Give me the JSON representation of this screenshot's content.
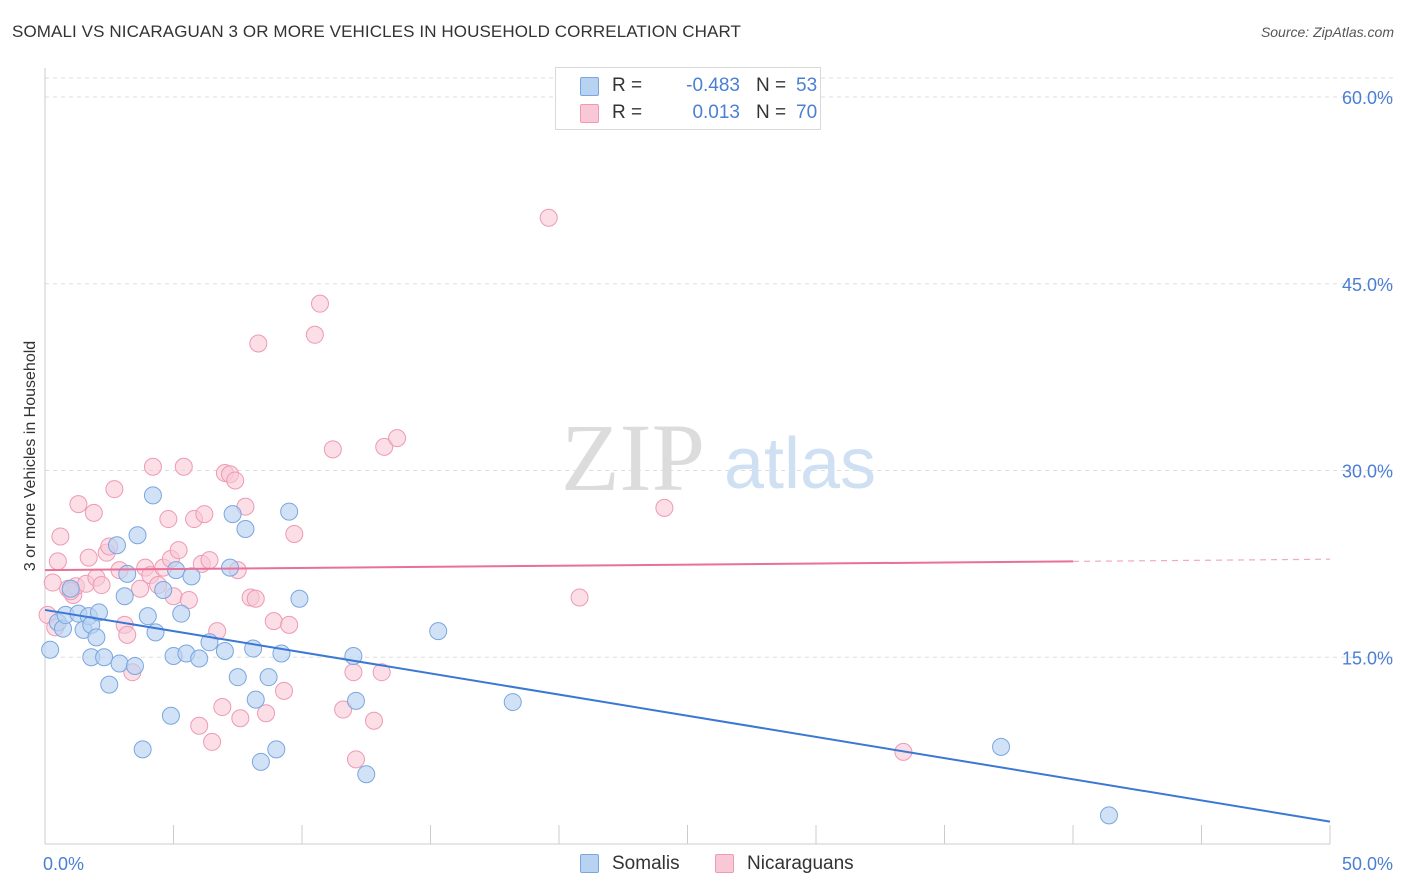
{
  "header": {
    "title": "SOMALI VS NICARAGUAN 3 OR MORE VEHICLES IN HOUSEHOLD CORRELATION CHART",
    "source": "Source: ZipAtlas.com"
  },
  "watermark": {
    "zip": "ZIP",
    "atlas": "atlas"
  },
  "legend": {
    "rows": [
      {
        "r_label": "R =",
        "r_value": "-0.483",
        "n_label": "N =",
        "n_value": "53"
      },
      {
        "r_label": "R =",
        "r_value": "0.013",
        "n_label": "N =",
        "n_value": "70"
      }
    ],
    "bottom": [
      {
        "label": "Somalis"
      },
      {
        "label": "Nicaraguans"
      }
    ]
  },
  "colors": {
    "somali_fill": "#b8d3f2",
    "somali_stroke": "#7aa6df",
    "somali_line": "#3a78d4",
    "nicaraguan_fill": "#f8c8d6",
    "nicaraguan_stroke": "#ee9ab5",
    "nicaraguan_line": "#e8709a",
    "tick_text": "#4a7fd4",
    "grid": "#dddddd"
  },
  "chart_data": {
    "type": "scatter",
    "title": "SOMALI VS NICARAGUAN 3 OR MORE VEHICLES IN HOUSEHOLD CORRELATION CHART",
    "xlabel": "",
    "ylabel": "3 or more Vehicles in Household",
    "xlim": [
      0,
      50
    ],
    "ylim": [
      0,
      60
    ],
    "x_tick_labels": [
      "0.0%",
      "50.0%"
    ],
    "y_ticks": [
      15,
      30,
      45,
      60
    ],
    "y_tick_labels": [
      "15.0%",
      "30.0%",
      "45.0%",
      "60.0%"
    ],
    "grid": true,
    "legend_position": "top-center",
    "series": [
      {
        "name": "Somalis",
        "r": -0.483,
        "n": 53,
        "trend": {
          "x": [
            0,
            50
          ],
          "y": [
            18.8,
            1.8
          ]
        },
        "points": [
          [
            0.2,
            15.6
          ],
          [
            0.5,
            17.8
          ],
          [
            0.7,
            17.3
          ],
          [
            0.8,
            18.4
          ],
          [
            1.0,
            20.5
          ],
          [
            1.3,
            18.5
          ],
          [
            1.5,
            17.2
          ],
          [
            1.7,
            18.3
          ],
          [
            1.8,
            17.6
          ],
          [
            1.8,
            15.0
          ],
          [
            2.0,
            16.6
          ],
          [
            2.1,
            18.6
          ],
          [
            2.3,
            15.0
          ],
          [
            2.5,
            12.8
          ],
          [
            2.8,
            24.0
          ],
          [
            2.9,
            14.5
          ],
          [
            3.1,
            19.9
          ],
          [
            3.2,
            21.7
          ],
          [
            3.5,
            14.3
          ],
          [
            3.6,
            24.8
          ],
          [
            3.8,
            7.6
          ],
          [
            4.0,
            18.3
          ],
          [
            4.2,
            28.0
          ],
          [
            4.3,
            17.0
          ],
          [
            4.6,
            20.4
          ],
          [
            4.9,
            10.3
          ],
          [
            5.0,
            15.1
          ],
          [
            5.1,
            22.0
          ],
          [
            5.3,
            18.5
          ],
          [
            5.5,
            15.3
          ],
          [
            5.7,
            21.5
          ],
          [
            6.0,
            14.9
          ],
          [
            6.4,
            16.2
          ],
          [
            7.0,
            15.5
          ],
          [
            7.2,
            22.2
          ],
          [
            7.3,
            26.5
          ],
          [
            7.5,
            13.4
          ],
          [
            7.8,
            25.3
          ],
          [
            8.1,
            15.7
          ],
          [
            8.2,
            11.6
          ],
          [
            8.4,
            6.6
          ],
          [
            8.7,
            13.4
          ],
          [
            9.0,
            7.6
          ],
          [
            9.2,
            15.3
          ],
          [
            9.5,
            26.7
          ],
          [
            9.9,
            19.7
          ],
          [
            12.0,
            15.1
          ],
          [
            12.1,
            11.5
          ],
          [
            12.5,
            5.6
          ],
          [
            15.3,
            17.1
          ],
          [
            18.2,
            11.4
          ],
          [
            37.2,
            7.8
          ],
          [
            41.4,
            2.3
          ]
        ]
      },
      {
        "name": "Nicaraguans",
        "r": 0.013,
        "n": 70,
        "trend": {
          "x": [
            0,
            40
          ],
          "y": [
            22.0,
            22.7
          ]
        },
        "points": [
          [
            0.1,
            18.4
          ],
          [
            0.3,
            21.0
          ],
          [
            0.5,
            22.7
          ],
          [
            0.6,
            24.7
          ],
          [
            0.9,
            20.5
          ],
          [
            1.1,
            20.0
          ],
          [
            1.2,
            20.7
          ],
          [
            1.3,
            27.3
          ],
          [
            1.6,
            20.9
          ],
          [
            1.7,
            23.0
          ],
          [
            1.9,
            26.6
          ],
          [
            2.0,
            21.4
          ],
          [
            2.2,
            20.8
          ],
          [
            2.4,
            23.4
          ],
          [
            2.5,
            23.9
          ],
          [
            2.7,
            28.5
          ],
          [
            2.9,
            22.0
          ],
          [
            3.1,
            17.6
          ],
          [
            3.2,
            16.8
          ],
          [
            3.4,
            13.8
          ],
          [
            3.7,
            20.5
          ],
          [
            3.9,
            22.2
          ],
          [
            4.1,
            21.6
          ],
          [
            4.2,
            30.3
          ],
          [
            4.4,
            20.8
          ],
          [
            4.6,
            22.2
          ],
          [
            4.8,
            26.1
          ],
          [
            4.9,
            22.9
          ],
          [
            5.0,
            19.9
          ],
          [
            5.2,
            23.6
          ],
          [
            5.4,
            30.3
          ],
          [
            5.6,
            19.6
          ],
          [
            5.8,
            26.1
          ],
          [
            6.0,
            9.5
          ],
          [
            6.1,
            22.5
          ],
          [
            6.2,
            26.5
          ],
          [
            6.4,
            22.8
          ],
          [
            6.5,
            8.2
          ],
          [
            6.7,
            17.1
          ],
          [
            6.9,
            11.0
          ],
          [
            7.0,
            29.8
          ],
          [
            7.2,
            29.7
          ],
          [
            7.4,
            29.2
          ],
          [
            7.5,
            22.0
          ],
          [
            7.6,
            10.1
          ],
          [
            7.8,
            27.1
          ],
          [
            8.0,
            19.8
          ],
          [
            8.2,
            19.7
          ],
          [
            8.3,
            40.2
          ],
          [
            8.6,
            10.5
          ],
          [
            8.9,
            17.9
          ],
          [
            9.3,
            12.3
          ],
          [
            9.5,
            17.6
          ],
          [
            9.7,
            24.9
          ],
          [
            10.5,
            40.9
          ],
          [
            10.7,
            43.4
          ],
          [
            11.2,
            31.7
          ],
          [
            11.6,
            10.8
          ],
          [
            12.0,
            13.8
          ],
          [
            12.1,
            6.8
          ],
          [
            12.8,
            9.9
          ],
          [
            13.1,
            13.8
          ],
          [
            13.2,
            31.9
          ],
          [
            13.7,
            32.6
          ],
          [
            19.6,
            50.3
          ],
          [
            20.8,
            19.8
          ],
          [
            24.1,
            27.0
          ],
          [
            33.4,
            7.4
          ],
          [
            0.4,
            17.4
          ],
          [
            1.0,
            20.3
          ]
        ]
      }
    ]
  }
}
